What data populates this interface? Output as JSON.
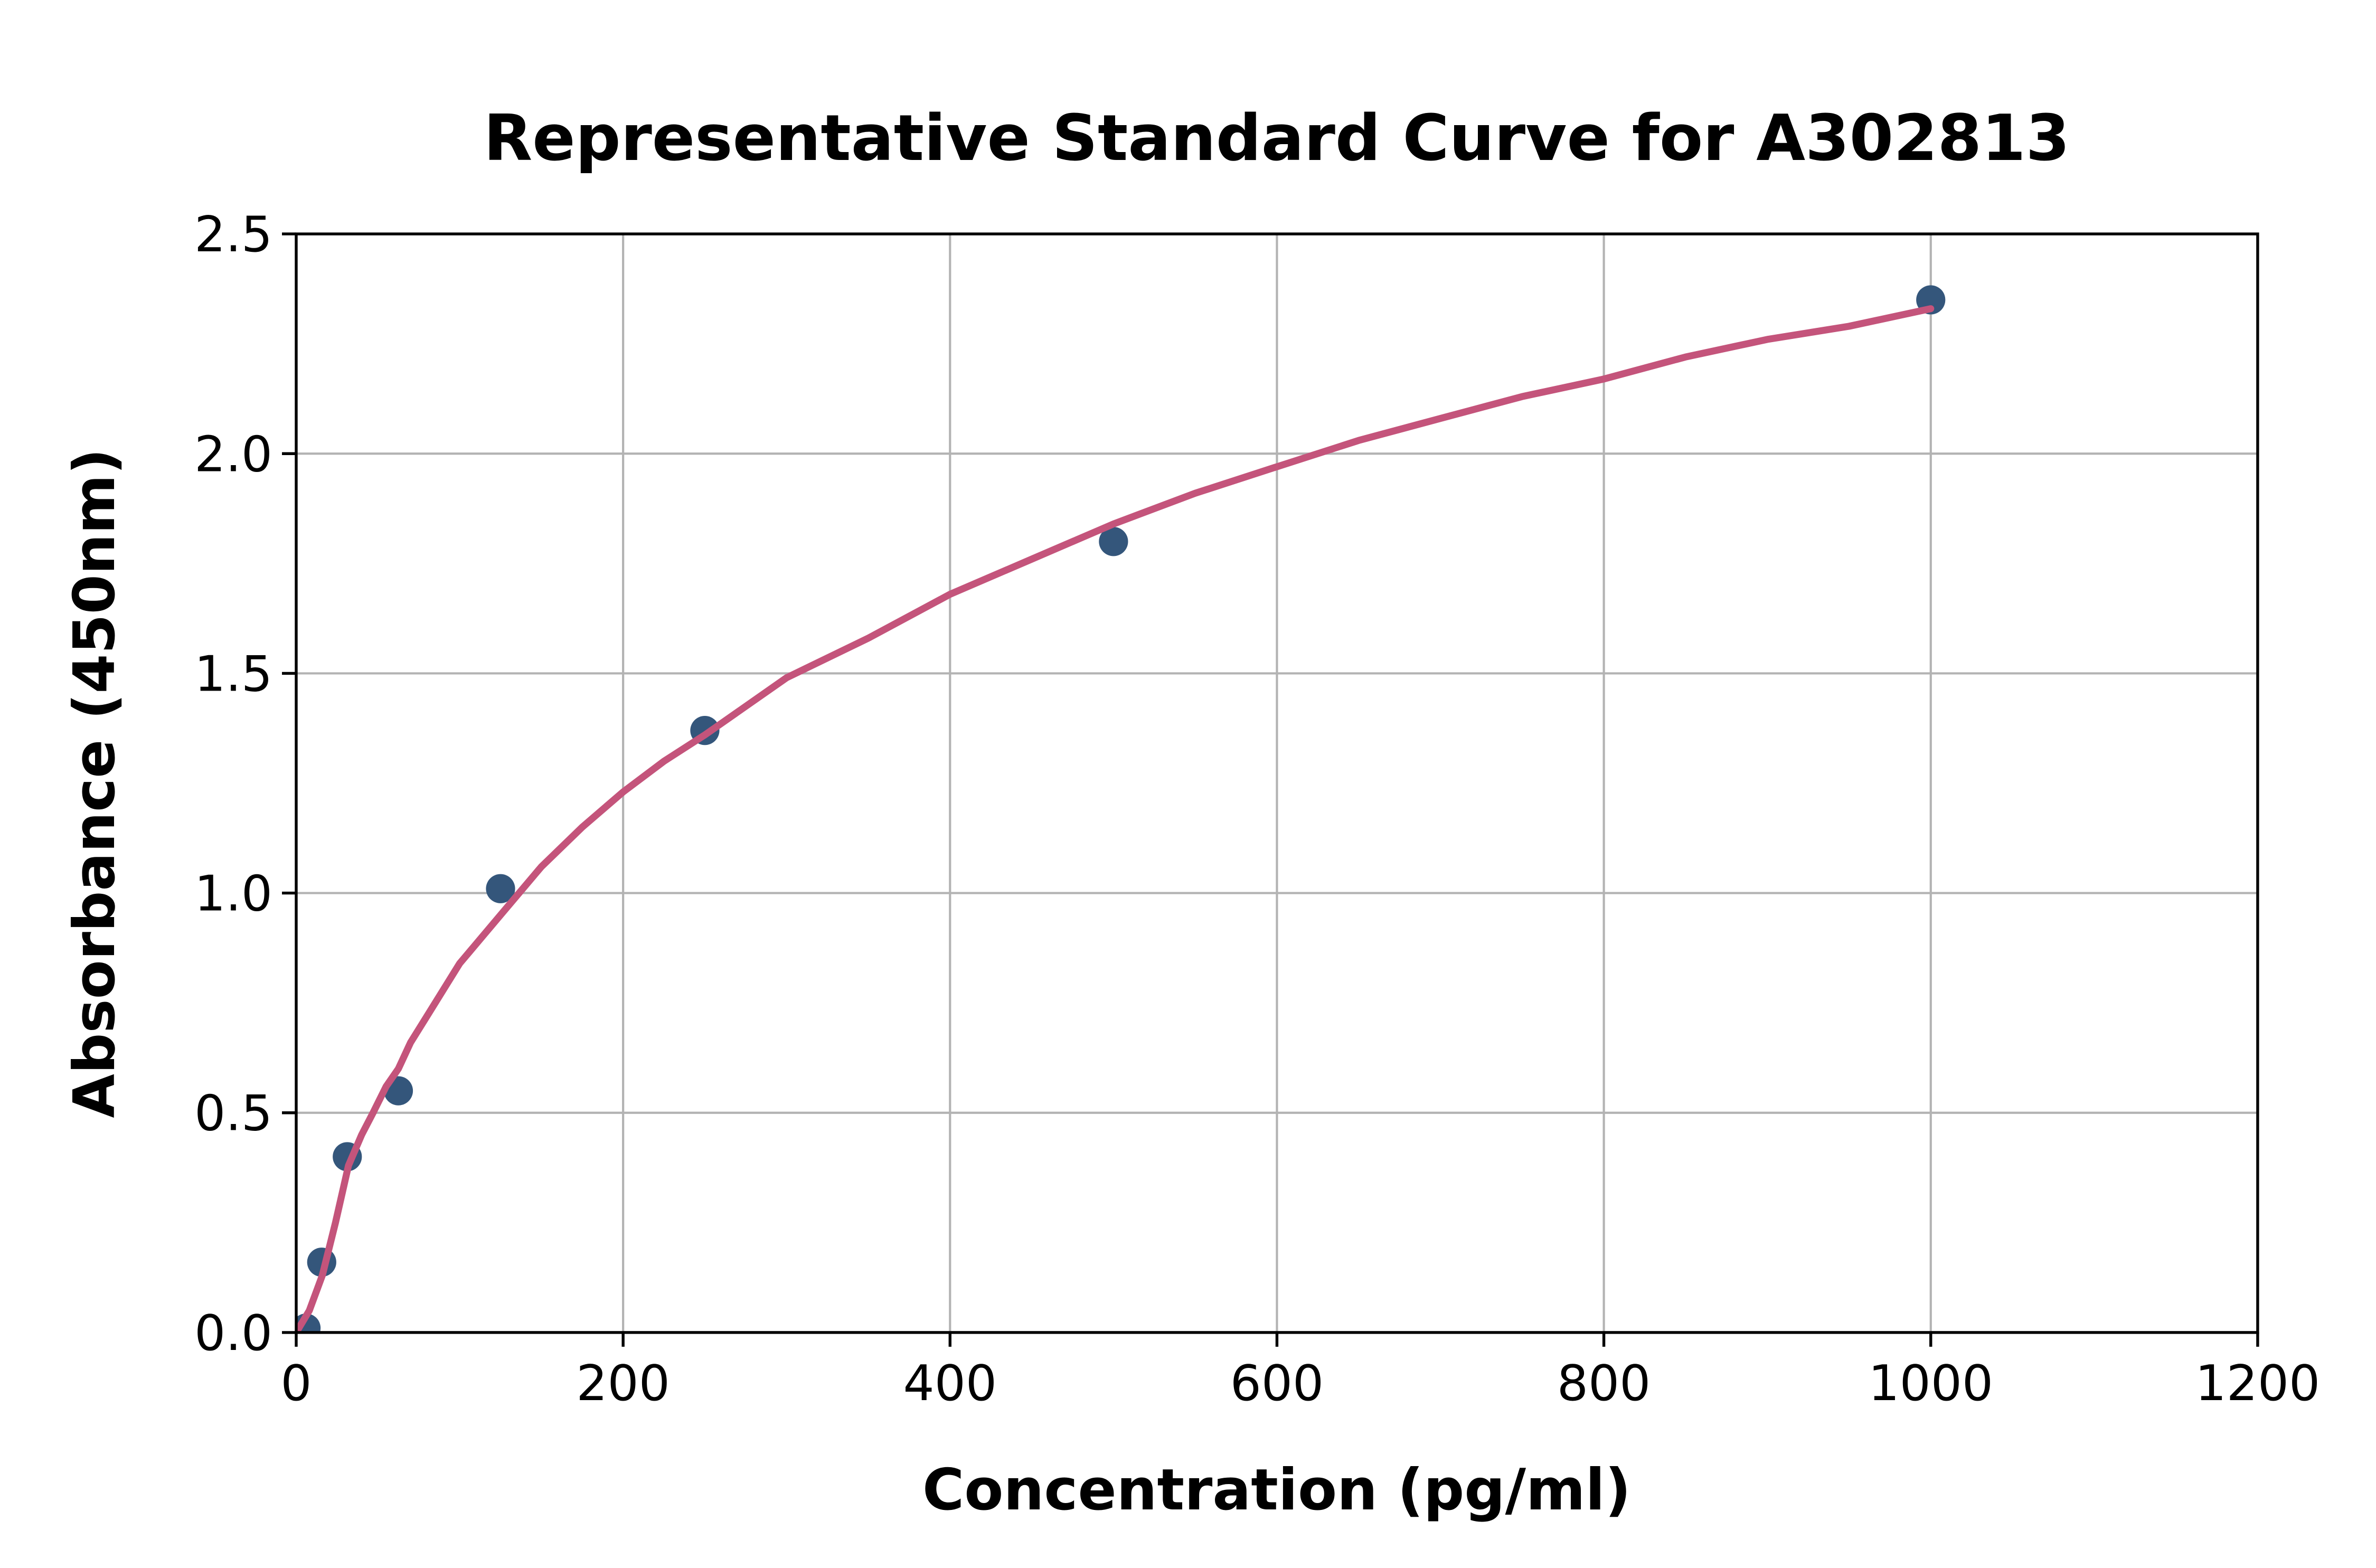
{
  "chart_data": {
    "type": "scatter",
    "title": "Representative Standard Curve for A302813",
    "xlabel": "Concentration (pg/ml)",
    "ylabel": "Absorbance (450nm)",
    "xlim": [
      0,
      1200
    ],
    "ylim": [
      0,
      2.5
    ],
    "x_ticks": [
      0,
      200,
      400,
      600,
      800,
      1000,
      1200
    ],
    "y_ticks": [
      0.0,
      0.5,
      1.0,
      1.5,
      2.0,
      2.5
    ],
    "grid": true,
    "legend": "none",
    "points": [
      {
        "x": 6,
        "y": 0.01
      },
      {
        "x": 15.6,
        "y": 0.16
      },
      {
        "x": 31.25,
        "y": 0.4
      },
      {
        "x": 62.5,
        "y": 0.55
      },
      {
        "x": 125,
        "y": 1.01
      },
      {
        "x": 250,
        "y": 1.37
      },
      {
        "x": 500,
        "y": 1.8
      },
      {
        "x": 1000,
        "y": 2.35
      }
    ],
    "fit_curve": {
      "model": "four-parameter-logistic (approx y = 0.765*ln(1+x/50))",
      "x_start": 0,
      "x_end": 1000,
      "samples": [
        [
          0,
          0
        ],
        [
          8,
          0.05
        ],
        [
          16,
          0.13
        ],
        [
          24,
          0.25
        ],
        [
          32,
          0.38
        ],
        [
          40,
          0.45
        ],
        [
          47,
          0.5
        ],
        [
          55,
          0.56
        ],
        [
          62.5,
          0.6
        ],
        [
          70,
          0.66
        ],
        [
          80,
          0.72
        ],
        [
          90,
          0.78
        ],
        [
          100,
          0.84
        ],
        [
          125,
          0.95
        ],
        [
          150,
          1.06
        ],
        [
          175,
          1.15
        ],
        [
          200,
          1.23
        ],
        [
          225,
          1.3
        ],
        [
          250,
          1.36
        ],
        [
          300,
          1.49
        ],
        [
          350,
          1.58
        ],
        [
          400,
          1.68
        ],
        [
          450,
          1.76
        ],
        [
          500,
          1.84
        ],
        [
          550,
          1.91
        ],
        [
          600,
          1.97
        ],
        [
          650,
          2.03
        ],
        [
          700,
          2.08
        ],
        [
          750,
          2.13
        ],
        [
          800,
          2.17
        ],
        [
          850,
          2.22
        ],
        [
          900,
          2.26
        ],
        [
          950,
          2.29
        ],
        [
          1000,
          2.33
        ]
      ]
    },
    "colors": {
      "marker": "#34567b",
      "curve": "#c4547b",
      "grid": "#b3b3b3",
      "spine": "#000000",
      "background": "#ffffff",
      "text": "#000000"
    }
  }
}
